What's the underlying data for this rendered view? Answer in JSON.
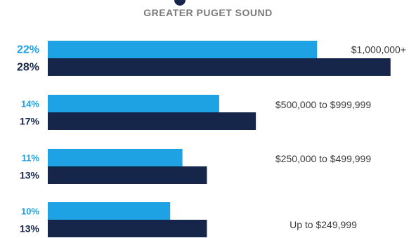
{
  "title": "GREATER PUGET SOUND",
  "colors": {
    "series_light": "#1ea2e3",
    "series_dark": "#16264a",
    "title": "#7a7a7a",
    "label": "#3a3a3a"
  },
  "chart_data": {
    "type": "bar",
    "orientation": "horizontal",
    "title": "GREATER PUGET SOUND",
    "categories": [
      "$1,000,000+",
      "$500,000 to $999,999",
      "$250,000 to $499,999",
      "Up to $249,999"
    ],
    "series": [
      {
        "values": [
          22,
          14,
          11,
          10
        ],
        "labels": [
          "22%",
          "14%",
          "11%",
          "10%"
        ]
      },
      {
        "values": [
          28,
          17,
          13,
          13
        ],
        "labels": [
          "28%",
          "17%",
          "13%",
          "13%"
        ]
      }
    ],
    "xlim": [
      0,
      30
    ],
    "grid": false,
    "legend": "none"
  }
}
